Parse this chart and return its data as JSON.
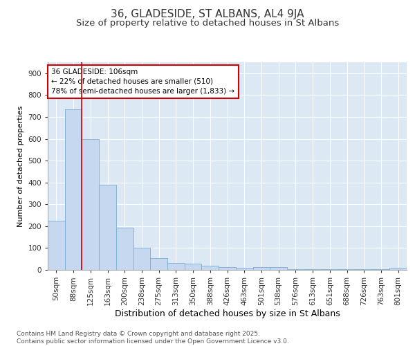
{
  "title1": "36, GLADESIDE, ST ALBANS, AL4 9JA",
  "title2": "Size of property relative to detached houses in St Albans",
  "xlabel": "Distribution of detached houses by size in St Albans",
  "ylabel": "Number of detached properties",
  "bar_labels": [
    "50sqm",
    "88sqm",
    "125sqm",
    "163sqm",
    "200sqm",
    "238sqm",
    "275sqm",
    "313sqm",
    "350sqm",
    "388sqm",
    "426sqm",
    "463sqm",
    "501sqm",
    "538sqm",
    "576sqm",
    "613sqm",
    "651sqm",
    "688sqm",
    "726sqm",
    "763sqm",
    "801sqm"
  ],
  "bar_values": [
    225,
    735,
    600,
    390,
    193,
    100,
    55,
    32,
    28,
    18,
    12,
    8,
    12,
    12,
    3,
    3,
    3,
    3,
    3,
    3,
    8
  ],
  "bar_color": "#c5d8f0",
  "bar_edge_color": "#7bafd4",
  "fig_bg_color": "#ffffff",
  "plot_bg_color": "#dde8f5",
  "vline_x_pos": 1.5,
  "vline_color": "#cc0000",
  "annotation_line1": "36 GLADESIDE: 106sqm",
  "annotation_line2": "← 22% of detached houses are smaller (510)",
  "annotation_line3": "78% of semi-detached houses are larger (1,833) →",
  "annotation_box_color": "#cc0000",
  "ylim": [
    0,
    950
  ],
  "yticks": [
    0,
    100,
    200,
    300,
    400,
    500,
    600,
    700,
    800,
    900
  ],
  "footer_text": "Contains HM Land Registry data © Crown copyright and database right 2025.\nContains public sector information licensed under the Open Government Licence v3.0.",
  "title1_fontsize": 11,
  "title2_fontsize": 9.5,
  "xlabel_fontsize": 9,
  "ylabel_fontsize": 8,
  "tick_fontsize": 7.5,
  "annotation_fontsize": 7.5,
  "footer_fontsize": 6.5
}
